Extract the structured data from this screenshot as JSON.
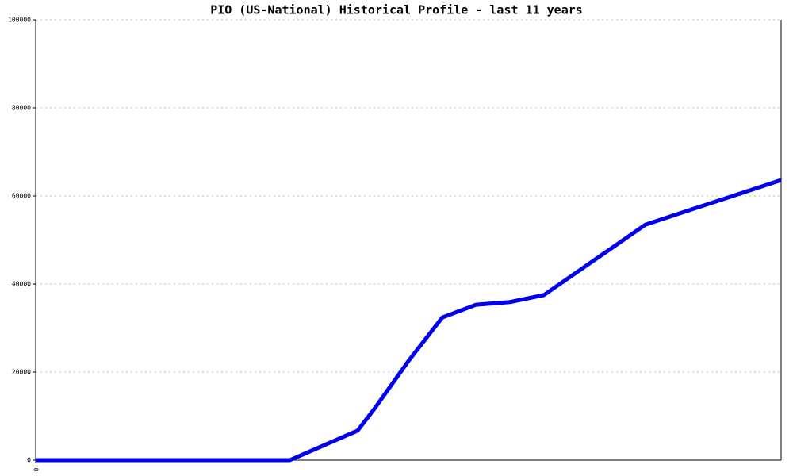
{
  "chart_data": {
    "type": "line",
    "title": "PIO (US-National) Historical Profile - last 11 years",
    "x": [
      0,
      15,
      19,
      20,
      22,
      24,
      26,
      28,
      30,
      36,
      44
    ],
    "values": [
      0,
      0,
      6700,
      11700,
      22500,
      32400,
      35300,
      35900,
      37500,
      53500,
      63600
    ],
    "color": "#0000ee",
    "xlim": [
      0,
      44
    ],
    "xticks": [
      0
    ],
    "ylim": [
      0,
      100000
    ],
    "yticks": [
      0,
      20000,
      40000,
      60000,
      80000,
      100000
    ],
    "grid": true
  }
}
